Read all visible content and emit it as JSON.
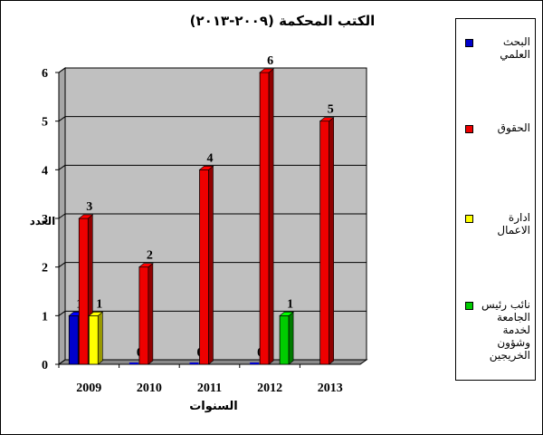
{
  "chart_data": {
    "type": "bar",
    "title": "الكتب المحكمة (٢٠٠٩-٢٠١٣)",
    "xlabel": "السنوات",
    "ylabel": "العدد",
    "categories": [
      "2009",
      "2010",
      "2011",
      "2012",
      "2013"
    ],
    "ylim": [
      0,
      6
    ],
    "yticks": [
      "0",
      "1",
      "2",
      "3",
      "4",
      "5",
      "6"
    ],
    "grid": true,
    "legend_position": "right",
    "series": [
      {
        "name": "البحث العلمي",
        "color": "#0000cc",
        "values": [
          1,
          0,
          0,
          0,
          null
        ],
        "labels": [
          "1",
          "0",
          "0",
          "0",
          ""
        ]
      },
      {
        "name": "الحقوق",
        "color": "#ee0000",
        "values": [
          3,
          2,
          4,
          6,
          5
        ],
        "labels": [
          "3",
          "2",
          "4",
          "6",
          "5"
        ]
      },
      {
        "name": "ادارة الاعمال",
        "color": "#ffff00",
        "values": [
          1,
          null,
          null,
          null,
          null
        ],
        "labels": [
          "1",
          "",
          "",
          "",
          ""
        ]
      },
      {
        "name": "نائب رئيس الجامعة لخدمة وشؤون الخريجين",
        "color": "#00cc00",
        "values": [
          null,
          null,
          null,
          1,
          null
        ],
        "labels": [
          "",
          "",
          "",
          "1",
          ""
        ]
      }
    ]
  }
}
